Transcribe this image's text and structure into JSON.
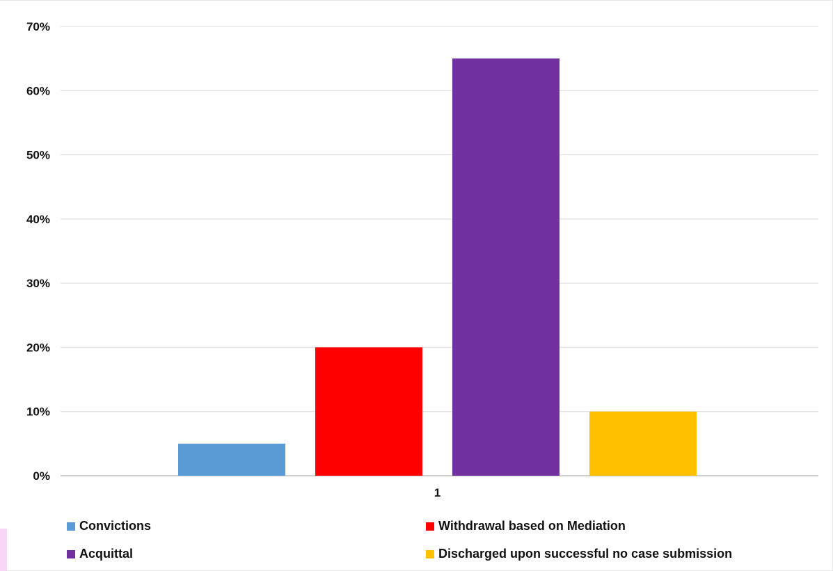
{
  "chart_data": {
    "type": "bar",
    "title": "",
    "xlabel": "",
    "ylabel": "",
    "categories": [
      "1"
    ],
    "ylim": [
      0,
      0.7
    ],
    "yticks": [
      0,
      0.1,
      0.2,
      0.3,
      0.4,
      0.5,
      0.6,
      0.7
    ],
    "ytick_labels": [
      "0%",
      "10%",
      "20%",
      "30%",
      "40%",
      "50%",
      "60%",
      "70%"
    ],
    "grid": true,
    "legend_position": "bottom",
    "series": [
      {
        "name": "Convictions",
        "values": [
          0.05
        ],
        "color": "#5b9bd5"
      },
      {
        "name": "Withdrawal based on Mediation",
        "values": [
          0.2
        ],
        "color": "#ff0000"
      },
      {
        "name": "Acquittal",
        "values": [
          0.65
        ],
        "color": "#7030a0"
      },
      {
        "name": "Discharged upon successful no case submission",
        "values": [
          0.1
        ],
        "color": "#ffc000"
      }
    ]
  }
}
